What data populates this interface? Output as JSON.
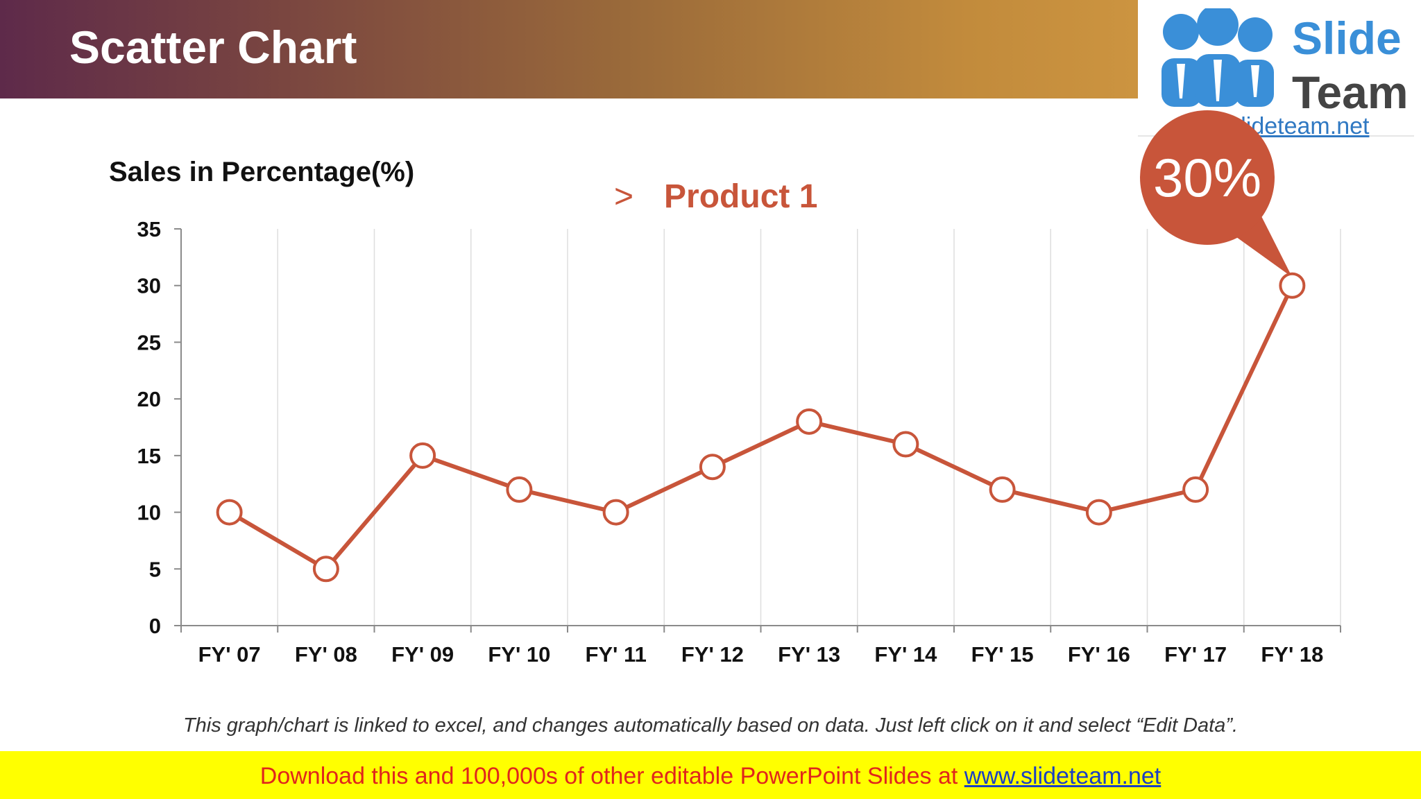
{
  "header": {
    "title": "Scatter Chart"
  },
  "logo": {
    "word1": "Slide",
    "word2": "Team",
    "url": "www.slideteam.net"
  },
  "callout": {
    "text": "30%"
  },
  "note": "This graph/chart is linked to excel, and changes automatically based on data. Just left click on it and select “Edit Data”.",
  "footer": {
    "text": "Download this and 100,000s of other editable PowerPoint Slides at",
    "link": "www.slideteam.net"
  },
  "colors": {
    "accent": "#c8553a",
    "header_start": "#5e2a4a",
    "header_end": "#cc9440",
    "footer_bg": "#ffff00",
    "footer_text": "#e0261c",
    "logo_blue": "#3a8fd8"
  },
  "chart_data": {
    "type": "line",
    "title": "",
    "ylabel": "Sales in Percentage(%)",
    "xlabel": "",
    "ylim": [
      0,
      35
    ],
    "yticks": [
      0,
      5,
      10,
      15,
      20,
      25,
      30,
      35
    ],
    "grid": "vertical",
    "legend_position": "top",
    "categories": [
      "FY' 07",
      "FY' 08",
      "FY' 09",
      "FY' 10",
      "FY' 11",
      "FY' 12",
      "FY' 13",
      "FY' 14",
      "FY' 15",
      "FY' 16",
      "FY' 17",
      "FY' 18"
    ],
    "series": [
      {
        "name": "Product 1",
        "values": [
          10,
          5,
          15,
          12,
          10,
          14,
          18,
          16,
          12,
          10,
          12,
          30
        ]
      }
    ],
    "annotation": {
      "category": "FY' 18",
      "text": "30%"
    }
  }
}
